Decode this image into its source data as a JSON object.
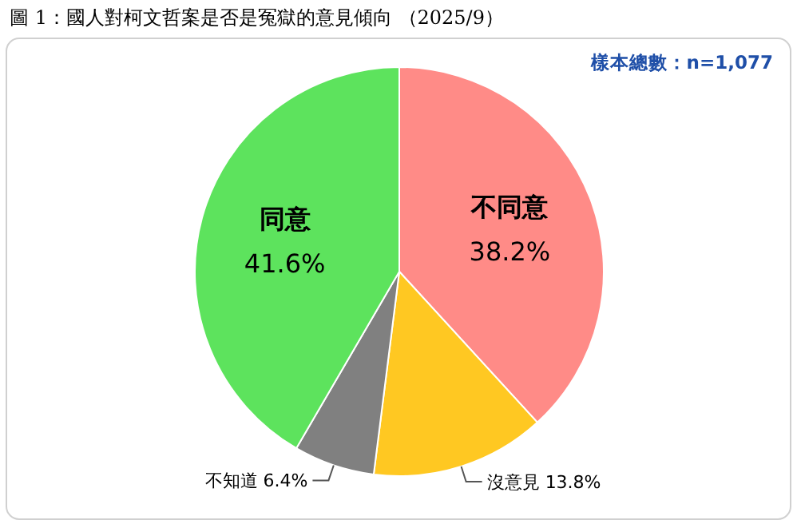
{
  "chart_data": {
    "type": "pie",
    "title": "圖 1：國人對柯文哲案是否是冤獄的意見傾向 （2025/9）",
    "annotations": [
      "樣本總數：n=1,077"
    ],
    "categories": [
      "不同意",
      "沒意見",
      "不知道",
      "同意"
    ],
    "values": [
      38.2,
      13.8,
      6.4,
      41.6
    ],
    "colors": [
      "#ff8b87",
      "#ffc822",
      "#808080",
      "#5de35d"
    ],
    "value_labels": [
      "38.2%",
      "13.8%",
      "6.4%",
      "41.6%"
    ]
  }
}
